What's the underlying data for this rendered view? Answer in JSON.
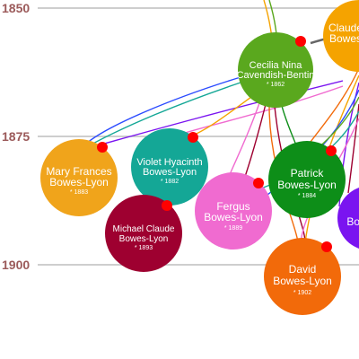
{
  "timeline": {
    "label_color": "#9b5a5a",
    "gridline_color": "#bdbdbd",
    "years": [
      "1850",
      "1875",
      "1900"
    ]
  },
  "colors": {
    "marker": "#ff0000"
  },
  "people": [
    {
      "id": "claude",
      "name_lines": [
        "Claude",
        "Bowes"
      ],
      "birth": "",
      "color": "#f5a300"
    },
    {
      "id": "cecilia",
      "name_lines": [
        "Cecilia Nina",
        "Cavendish-Bentin"
      ],
      "birth": "* 1862",
      "color": "#5aa81e"
    },
    {
      "id": "mary",
      "name_lines": [
        "Mary Frances",
        "Bowes-Lyon"
      ],
      "birth": "* 1883",
      "color": "#f0a41b"
    },
    {
      "id": "violet",
      "name_lines": [
        "Violet Hyacinth",
        "Bowes-Lyon"
      ],
      "birth": "* 1882",
      "color": "#14a796"
    },
    {
      "id": "michael",
      "name_lines": [
        "Michael Claude",
        "Bowes-Lyon"
      ],
      "birth": "* 1893",
      "color": "#9e0030"
    },
    {
      "id": "fergus",
      "name_lines": [
        "Fergus",
        "Bowes-Lyon"
      ],
      "birth": "* 1889",
      "color": "#f06bd0"
    },
    {
      "id": "patrick",
      "name_lines": [
        "Patrick",
        "Bowes-Lyon"
      ],
      "birth": "* 1884",
      "color": "#0d8e18"
    },
    {
      "id": "david",
      "name_lines": [
        "David",
        "Bowes-Lyon"
      ],
      "birth": "* 1902",
      "color": "#f26a0a"
    },
    {
      "id": "bowes_right",
      "name_lines": [
        "Bow"
      ],
      "birth": "",
      "color": "#7a14f0"
    }
  ]
}
